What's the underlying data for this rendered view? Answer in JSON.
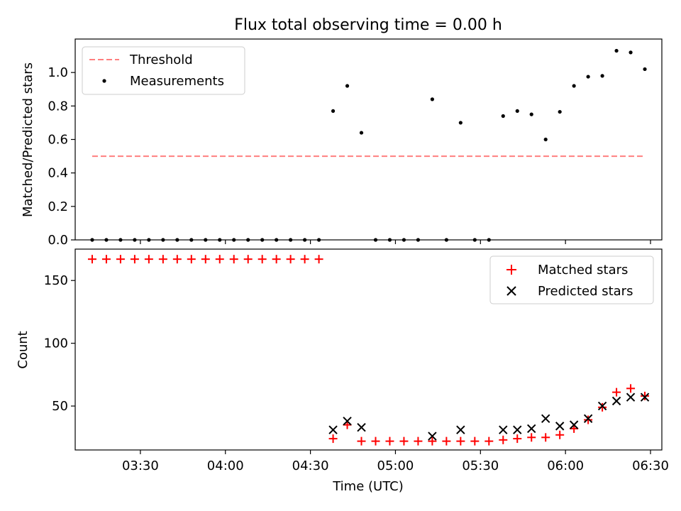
{
  "chart_data": [
    {
      "type": "scatter",
      "title": "Flux total observing time = 0.00 h",
      "ylabel": "Matched/Predicted stars",
      "xlabel": "",
      "xlim": [
        "03:07",
        "06:34"
      ],
      "ylim": [
        0,
        1.2
      ],
      "y_ticks": [
        0.0,
        0.2,
        0.4,
        0.6,
        0.8,
        1.0
      ],
      "y_tick_labels": [
        "0.0",
        "0.2",
        "0.4",
        "0.6",
        "0.8",
        "1.0"
      ],
      "legend_position": "top-left",
      "series": [
        {
          "name": "Threshold",
          "kind": "dashed-line",
          "color": "#ff7f7f",
          "x": [
            "03:13",
            "06:28"
          ],
          "y": [
            0.5,
            0.5
          ]
        },
        {
          "name": "Measurements",
          "kind": "dot",
          "color": "#000000",
          "x": [
            "03:13",
            "03:18",
            "03:23",
            "03:28",
            "03:33",
            "03:38",
            "03:43",
            "03:48",
            "03:53",
            "03:58",
            "04:03",
            "04:08",
            "04:13",
            "04:18",
            "04:23",
            "04:28",
            "04:33",
            "04:38",
            "04:43",
            "04:48",
            "04:53",
            "04:58",
            "05:03",
            "05:08",
            "05:13",
            "05:18",
            "05:23",
            "05:28",
            "05:33",
            "05:38",
            "05:43",
            "05:48",
            "05:53",
            "05:58",
            "06:03",
            "06:08",
            "06:13",
            "06:18",
            "06:23",
            "06:28"
          ],
          "y": [
            0,
            0,
            0,
            0,
            0,
            0,
            0,
            0,
            0,
            0,
            0,
            0,
            0,
            0,
            0,
            0,
            0,
            0.77,
            0.92,
            0.64,
            0,
            0,
            0,
            0,
            0.84,
            0,
            0.7,
            0,
            0,
            0.74,
            0.77,
            0.75,
            0.6,
            0.765,
            0.92,
            0.975,
            0.98,
            1.13,
            1.12,
            1.02
          ]
        }
      ]
    },
    {
      "type": "scatter",
      "title": "",
      "xlabel": "Time (UTC)",
      "ylabel": "Count",
      "xlim": [
        "03:07",
        "06:34"
      ],
      "ylim": [
        15,
        175
      ],
      "x_ticks": [
        "03:30",
        "04:00",
        "04:30",
        "05:00",
        "05:30",
        "06:00",
        "06:30"
      ],
      "y_ticks": [
        50,
        100,
        150
      ],
      "y_tick_labels": [
        "50",
        "100",
        "150"
      ],
      "legend_position": "top-right",
      "series": [
        {
          "name": "Matched stars",
          "marker": "+",
          "color": "#ff0000",
          "x": [
            "03:13",
            "03:18",
            "03:23",
            "03:28",
            "03:33",
            "03:38",
            "03:43",
            "03:48",
            "03:53",
            "03:58",
            "04:03",
            "04:08",
            "04:13",
            "04:18",
            "04:23",
            "04:28",
            "04:33",
            "04:38",
            "04:43",
            "04:48",
            "04:53",
            "04:58",
            "05:03",
            "05:08",
            "05:13",
            "05:18",
            "05:23",
            "05:28",
            "05:33",
            "05:38",
            "05:43",
            "05:48",
            "05:53",
            "05:58",
            "06:03",
            "06:08",
            "06:13",
            "06:18",
            "06:23",
            "06:28"
          ],
          "y": [
            167,
            167,
            167,
            167,
            167,
            167,
            167,
            167,
            167,
            167,
            167,
            167,
            167,
            167,
            167,
            167,
            167,
            24,
            35,
            22,
            22,
            22,
            22,
            22,
            22,
            22,
            22,
            22,
            22,
            23,
            24,
            25,
            25,
            27,
            32,
            39,
            49,
            61,
            64,
            58
          ]
        },
        {
          "name": "Predicted stars",
          "marker": "x",
          "color": "#000000",
          "x": [
            "04:38",
            "04:43",
            "04:48",
            "05:13",
            "05:23",
            "05:38",
            "05:43",
            "05:48",
            "05:53",
            "05:58",
            "06:03",
            "06:08",
            "06:13",
            "06:18",
            "06:23",
            "06:28"
          ],
          "y": [
            31,
            38,
            33,
            26,
            31,
            31,
            31,
            32,
            40,
            34,
            35,
            40,
            50,
            54,
            57,
            57
          ]
        }
      ]
    }
  ]
}
